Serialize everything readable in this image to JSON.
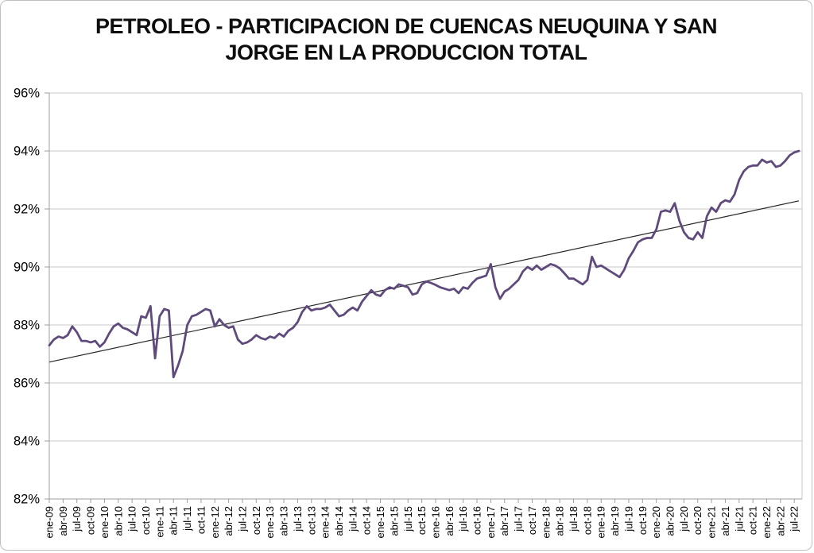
{
  "chart_data": {
    "type": "line",
    "title": "PETROLEO - PARTICIPACION DE CUENCAS NEUQUINA Y SAN JORGE EN LA PRODUCCION TOTAL",
    "frequency": "monthly",
    "x_start": "ene-09",
    "x_end": "ago-22",
    "x_tick_labels": [
      "ene-09",
      "abr-09",
      "jul-09",
      "oct-09",
      "ene-10",
      "abr-10",
      "jul-10",
      "oct-10",
      "ene-11",
      "abr-11",
      "jul-11",
      "oct-11",
      "ene-12",
      "abr-12",
      "jul-12",
      "oct-12",
      "ene-13",
      "abr-13",
      "jul-13",
      "oct-13",
      "ene-14",
      "abr-14",
      "jul-14",
      "oct-14",
      "ene-15",
      "abr-15",
      "jul-15",
      "oct-15",
      "ene-16",
      "abr-16",
      "jul-16",
      "oct-16",
      "ene-17",
      "abr-17",
      "jul-17",
      "oct-17",
      "ene-18",
      "abr-18",
      "jul-18",
      "oct-18",
      "ene-19",
      "abr-19",
      "jul-19",
      "oct-19",
      "ene-20",
      "abr-20",
      "jul-20",
      "oct-20",
      "ene-21",
      "abr-21",
      "jul-21",
      "oct-21",
      "ene-22",
      "abr-22",
      "jul-22"
    ],
    "x_tick_interval_months": 3,
    "y_tick_labels": [
      "96%",
      "94%",
      "92%",
      "90%",
      "88%",
      "86%",
      "84%",
      "82%"
    ],
    "ylim": [
      82,
      96
    ],
    "grid": "horizontal",
    "legend": "none",
    "colors": {
      "series": "#5F4A7C",
      "trendline": "#262626",
      "gridline": "#C9C9C9",
      "axis": "#9E9E9E",
      "text": "#000000"
    },
    "series": [
      {
        "name": "participacion-cuencas",
        "color": "#5F4A7C",
        "values": [
          87.3,
          87.5,
          87.6,
          87.55,
          87.65,
          87.95,
          87.75,
          87.45,
          87.45,
          87.4,
          87.45,
          87.25,
          87.4,
          87.7,
          87.95,
          88.05,
          87.9,
          87.85,
          87.75,
          87.65,
          88.3,
          88.25,
          88.65,
          86.85,
          88.3,
          88.55,
          88.5,
          86.2,
          86.6,
          87.1,
          88.0,
          88.3,
          88.35,
          88.45,
          88.55,
          88.5,
          87.95,
          88.2,
          88.0,
          87.9,
          87.95,
          87.5,
          87.35,
          87.4,
          87.5,
          87.65,
          87.55,
          87.5,
          87.6,
          87.55,
          87.7,
          87.6,
          87.8,
          87.9,
          88.1,
          88.45,
          88.65,
          88.5,
          88.55,
          88.55,
          88.6,
          88.7,
          88.5,
          88.3,
          88.35,
          88.5,
          88.6,
          88.5,
          88.8,
          89.0,
          89.2,
          89.05,
          89.0,
          89.2,
          89.3,
          89.25,
          89.4,
          89.35,
          89.3,
          89.05,
          89.1,
          89.4,
          89.5,
          89.45,
          89.38,
          89.3,
          89.25,
          89.2,
          89.25,
          89.1,
          89.3,
          89.25,
          89.45,
          89.6,
          89.65,
          89.7,
          90.1,
          89.3,
          88.9,
          89.15,
          89.25,
          89.4,
          89.55,
          89.85,
          90.0,
          89.9,
          90.05,
          89.9,
          90.0,
          90.1,
          90.05,
          89.95,
          89.78,
          89.6,
          89.6,
          89.5,
          89.4,
          89.55,
          90.35,
          90.0,
          90.05,
          89.95,
          89.85,
          89.75,
          89.65,
          89.9,
          90.3,
          90.55,
          90.85,
          90.95,
          91.0,
          91.0,
          91.3,
          91.9,
          91.95,
          91.9,
          92.2,
          91.6,
          91.2,
          91.0,
          90.95,
          91.2,
          91.0,
          91.75,
          92.05,
          91.9,
          92.2,
          92.3,
          92.25,
          92.5,
          93.0,
          93.3,
          93.45,
          93.5,
          93.5,
          93.7,
          93.6,
          93.65,
          93.45,
          93.5,
          93.65,
          93.85,
          93.95,
          94.0
        ]
      }
    ],
    "trendline": {
      "type": "linear",
      "color": "#262626",
      "start_value": 86.72,
      "end_value": 92.28
    }
  }
}
